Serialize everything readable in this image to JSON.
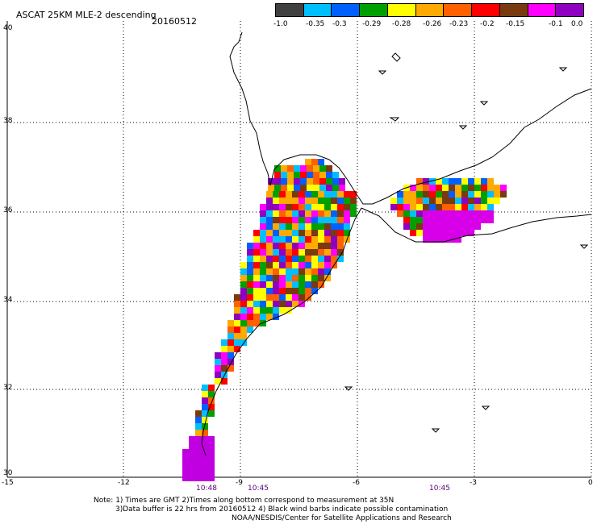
{
  "header": {
    "product": "ASCAT 25KM MLE-2 descending",
    "date": "20160512"
  },
  "colorbar": {
    "colors": [
      "#404040",
      "#00bfff",
      "#0060ff",
      "#00a000",
      "#ffff00",
      "#ffaa00",
      "#ff6000",
      "#ff0000",
      "#7a3a10",
      "#ff00ff",
      "#9000c0"
    ],
    "tick_labels": [
      "-1.0",
      "-0.35",
      "-0.3",
      "-0.29",
      "-0.28",
      "-0.26",
      "-0.23",
      "-0.2",
      "-0.15",
      "-0.1",
      "0.0"
    ]
  },
  "map": {
    "lon_labels": [
      "-15",
      "-12",
      "-9",
      "-6",
      "-3",
      "0"
    ],
    "lat_labels": [
      "40",
      "38",
      "36",
      "34",
      "32",
      "30"
    ],
    "time_labels": [
      "10:48",
      "10:45",
      "10:45"
    ]
  },
  "footer": {
    "line1": "Note: 1) Times are GMT 2)Times along bottom correspond to measurement at 35N",
    "line2": "3)Data buffer is 22 hrs from 20160512 4) Black wind barbs indicate possible contamination",
    "line3": "NOAA/NESDIS/Center for Satellite Applications and Research"
  }
}
